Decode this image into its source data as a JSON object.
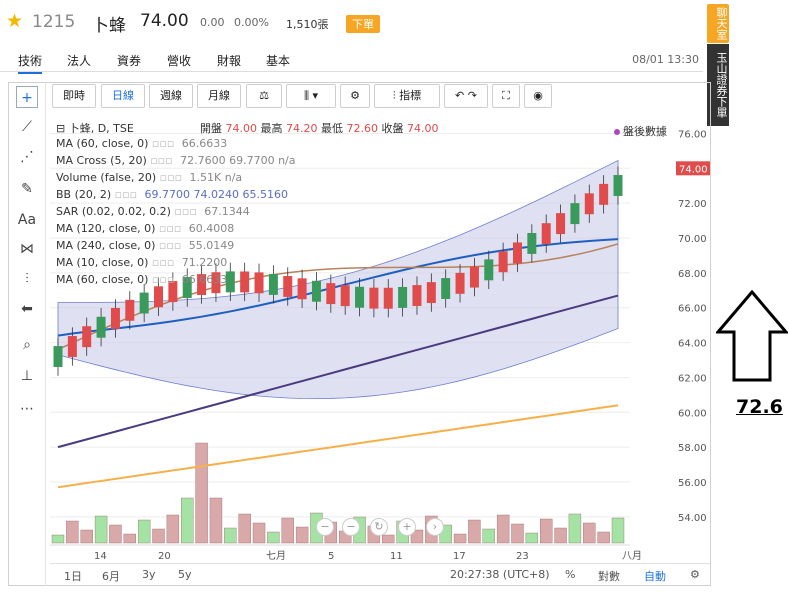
{
  "header": {
    "stock_code": "1215",
    "stock_name": "卜蜂",
    "price": "74.00",
    "change": "0.00",
    "change_pct": "0.00%",
    "volume": "1,510張",
    "order_button": "下單"
  },
  "nav": {
    "tabs": [
      "技術",
      "法人",
      "資券",
      "營收",
      "財報",
      "基本"
    ],
    "datetime": "08/01 13:30"
  },
  "toolbar": {
    "buttons": [
      "即時",
      "日線",
      "週線",
      "月線",
      "指標"
    ],
    "active": "日線"
  },
  "side": {
    "chat_tag": "聊天室",
    "broker_button": "玉山證券下單"
  },
  "legend": {
    "title": "卜蜂, D, TSE",
    "ohlc_open_label": "開盤",
    "ohlc_open": "74.00",
    "ohlc_high_label": "最高",
    "ohlc_high": "74.20",
    "ohlc_low_label": "最低",
    "ohlc_low": "72.60",
    "ohlc_close_label": "收盤",
    "ohlc_close": "74.00",
    "after_hours": "盤後數據",
    "rows": [
      {
        "label": "MA (60, close, 0)",
        "value": "66.6633"
      },
      {
        "label": "MA Cross (5, 20)",
        "value": "72.7600 69.7700 n/a"
      },
      {
        "label": "Volume (false, 20)",
        "value": "1.51K n/a"
      },
      {
        "label": "BB (20, 2)",
        "value": "69.7700 74.0240 65.5160"
      },
      {
        "label": "SAR (0.02, 0.02, 0.2)",
        "value": "67.1344"
      },
      {
        "label": "MA (120, close, 0)",
        "value": "60.4008"
      },
      {
        "label": "MA (240, close, 0)",
        "value": "55.0149"
      },
      {
        "label": "MA (10, close, 0)",
        "value": "71.2200"
      },
      {
        "label": "MA (60, close, 0)",
        "value": "66.6633"
      }
    ]
  },
  "price_axis": [
    "76.00",
    "74.00",
    "72.00",
    "70.00",
    "68.00",
    "66.00",
    "64.00",
    "62.00",
    "60.00",
    "58.00",
    "56.00",
    "54.00"
  ],
  "price_badge": "74.00",
  "date_axis": [
    "14",
    "20",
    "七月",
    "5",
    "11",
    "17",
    "23",
    "八月"
  ],
  "bottom": {
    "ranges": [
      "1日",
      "6月",
      "3y",
      "5y"
    ],
    "clock": "20:27:38 (UTC+8)",
    "pct": "%",
    "log": "對數",
    "auto": "自動"
  },
  "annotation": "72.6",
  "colors": {
    "up": "#e04b4b",
    "down": "#3a9a5b",
    "ma_blue": "#1f5fc2",
    "ma_purple": "#4a3a80",
    "ma_orange": "#f6b04a",
    "ma_brown": "#b8825a",
    "bb_fill": "#c9cce8"
  }
}
